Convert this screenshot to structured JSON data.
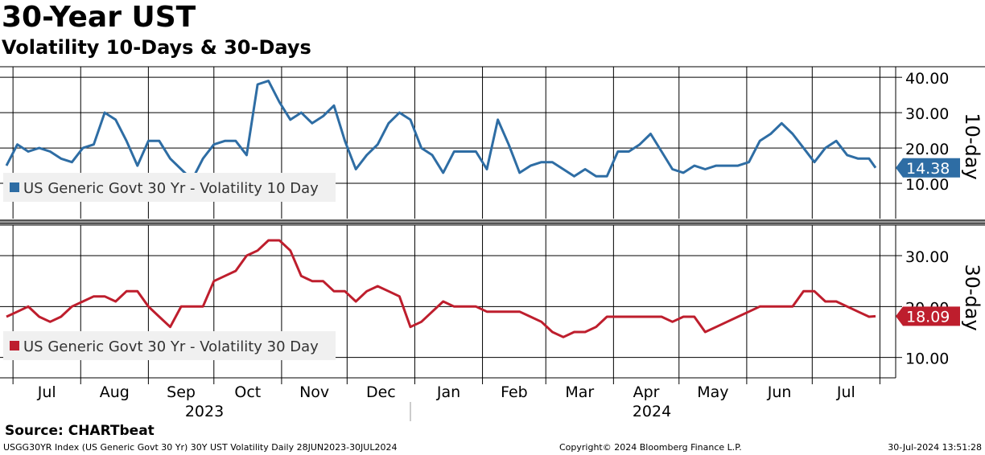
{
  "title": "30-Year UST",
  "subtitle": "Volatility 10-Days & 30-Days",
  "source": "Source: CHARTbeat",
  "footer": {
    "left": "USGG30YR Index (US Generic Govt 30 Yr) 30Y UST Volatility  Daily 28JUN2023-30JUL2024",
    "center": "Copyright© 2024 Bloomberg Finance L.P.",
    "right": "30-Jul-2024 13:51:28"
  },
  "colors": {
    "series_10d": "#2e6da4",
    "series_30d": "#be1e2d",
    "grid": "#000000"
  },
  "chart_data": [
    {
      "type": "line",
      "panel": "top",
      "axis_label": "10-day",
      "y_ticks": [
        "10.00",
        "20.00",
        "30.00",
        "40.00"
      ],
      "ylim": [
        0,
        43
      ],
      "last_value_label": "14.38",
      "legend": "US Generic Govt 30 Yr - Volatility 10 Day",
      "x": [
        "2023-06-28",
        "2023-07-03",
        "2023-07-08",
        "2023-07-13",
        "2023-07-18",
        "2023-07-23",
        "2023-07-28",
        "2023-08-02",
        "2023-08-07",
        "2023-08-12",
        "2023-08-17",
        "2023-08-22",
        "2023-08-27",
        "2023-09-01",
        "2023-09-06",
        "2023-09-11",
        "2023-09-16",
        "2023-09-21",
        "2023-09-26",
        "2023-10-01",
        "2023-10-06",
        "2023-10-11",
        "2023-10-16",
        "2023-10-21",
        "2023-10-26",
        "2023-10-31",
        "2023-11-05",
        "2023-11-10",
        "2023-11-15",
        "2023-11-20",
        "2023-11-25",
        "2023-11-30",
        "2023-12-05",
        "2023-12-10",
        "2023-12-15",
        "2023-12-20",
        "2023-12-25",
        "2023-12-30",
        "2024-01-04",
        "2024-01-09",
        "2024-01-14",
        "2024-01-19",
        "2024-01-24",
        "2024-01-29",
        "2024-02-03",
        "2024-02-08",
        "2024-02-13",
        "2024-02-18",
        "2024-02-23",
        "2024-02-28",
        "2024-03-04",
        "2024-03-09",
        "2024-03-14",
        "2024-03-19",
        "2024-03-24",
        "2024-03-29",
        "2024-04-03",
        "2024-04-08",
        "2024-04-13",
        "2024-04-18",
        "2024-04-23",
        "2024-04-28",
        "2024-05-03",
        "2024-05-08",
        "2024-05-13",
        "2024-05-18",
        "2024-05-23",
        "2024-05-28",
        "2024-06-02",
        "2024-06-07",
        "2024-06-12",
        "2024-06-17",
        "2024-06-22",
        "2024-06-27",
        "2024-07-02",
        "2024-07-07",
        "2024-07-12",
        "2024-07-17",
        "2024-07-22",
        "2024-07-27",
        "2024-07-30"
      ],
      "series": [
        {
          "values": [
            15,
            21,
            19,
            20,
            19,
            17,
            16,
            20,
            21,
            30,
            28,
            22,
            15,
            22,
            22,
            17,
            14,
            11,
            17,
            21,
            22,
            22,
            18,
            38,
            39,
            33,
            28,
            30,
            27,
            29,
            32,
            22,
            14,
            18,
            21,
            27,
            30,
            28,
            20,
            18,
            13,
            19,
            19,
            19,
            14,
            28,
            21,
            13,
            15,
            16,
            16,
            14,
            12,
            14,
            12,
            12,
            19,
            19,
            21,
            24,
            19,
            14,
            13,
            15,
            14,
            15,
            15,
            15,
            16,
            22,
            24,
            27,
            24,
            20,
            16,
            20,
            22,
            18,
            17,
            17,
            14.38
          ]
        }
      ]
    },
    {
      "type": "line",
      "panel": "bottom",
      "axis_label": "30-day",
      "y_ticks": [
        "10.00",
        "20.00",
        "30.00"
      ],
      "ylim": [
        6,
        36
      ],
      "last_value_label": "18.09",
      "legend": "US Generic Govt 30 Yr - Volatility 30 Day",
      "x": [
        "2023-06-28",
        "2023-07-03",
        "2023-07-08",
        "2023-07-13",
        "2023-07-18",
        "2023-07-23",
        "2023-07-28",
        "2023-08-02",
        "2023-08-07",
        "2023-08-12",
        "2023-08-17",
        "2023-08-22",
        "2023-08-27",
        "2023-09-01",
        "2023-09-06",
        "2023-09-11",
        "2023-09-16",
        "2023-09-21",
        "2023-09-26",
        "2023-10-01",
        "2023-10-06",
        "2023-10-11",
        "2023-10-16",
        "2023-10-21",
        "2023-10-26",
        "2023-10-31",
        "2023-11-05",
        "2023-11-10",
        "2023-11-15",
        "2023-11-20",
        "2023-11-25",
        "2023-11-30",
        "2023-12-05",
        "2023-12-10",
        "2023-12-15",
        "2023-12-20",
        "2023-12-25",
        "2023-12-30",
        "2024-01-04",
        "2024-01-09",
        "2024-01-14",
        "2024-01-19",
        "2024-01-24",
        "2024-01-29",
        "2024-02-03",
        "2024-02-08",
        "2024-02-13",
        "2024-02-18",
        "2024-02-23",
        "2024-02-28",
        "2024-03-04",
        "2024-03-09",
        "2024-03-14",
        "2024-03-19",
        "2024-03-24",
        "2024-03-29",
        "2024-04-03",
        "2024-04-08",
        "2024-04-13",
        "2024-04-18",
        "2024-04-23",
        "2024-04-28",
        "2024-05-03",
        "2024-05-08",
        "2024-05-13",
        "2024-05-18",
        "2024-05-23",
        "2024-05-28",
        "2024-06-02",
        "2024-06-07",
        "2024-06-12",
        "2024-06-17",
        "2024-06-22",
        "2024-06-27",
        "2024-07-02",
        "2024-07-07",
        "2024-07-12",
        "2024-07-17",
        "2024-07-22",
        "2024-07-27",
        "2024-07-30"
      ],
      "series": [
        {
          "values": [
            18,
            19,
            20,
            18,
            17,
            18,
            20,
            21,
            22,
            22,
            21,
            23,
            23,
            20,
            18,
            16,
            20,
            20,
            20,
            25,
            26,
            27,
            30,
            31,
            33,
            33,
            31,
            26,
            25,
            25,
            23,
            23,
            21,
            23,
            24,
            23,
            22,
            16,
            17,
            19,
            21,
            20,
            20,
            20,
            19,
            19,
            19,
            19,
            18,
            17,
            15,
            14,
            15,
            15,
            16,
            18,
            18,
            18,
            18,
            18,
            18,
            17,
            18,
            18,
            15,
            16,
            17,
            18,
            19,
            20,
            20,
            20,
            20,
            23,
            23,
            21,
            21,
            20,
            19,
            18,
            18.09
          ]
        }
      ]
    }
  ],
  "x_axis": {
    "months": [
      "Jul",
      "Aug",
      "Sep",
      "Oct",
      "Nov",
      "Dec",
      "Jan",
      "Feb",
      "Mar",
      "Apr",
      "May",
      "Jun",
      "Jul"
    ],
    "years": [
      "2023",
      "2024"
    ]
  }
}
